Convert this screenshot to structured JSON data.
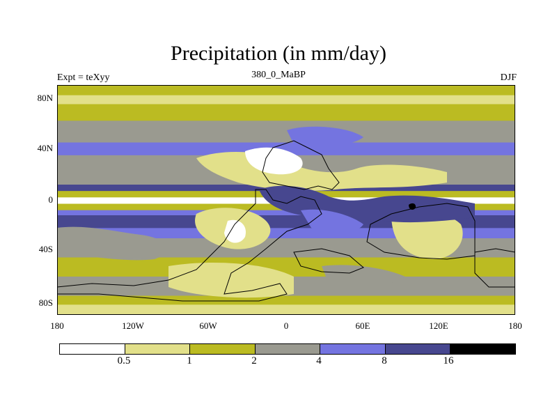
{
  "title": "Precipitation (in mm/day)",
  "left_label": "Expt = teXyy",
  "center_label": "380_0_MaBP",
  "right_label": "DJF",
  "lat_labels": [
    "80N",
    "40N",
    "0",
    "40S",
    "80S"
  ],
  "lon_labels": [
    "180",
    "120W",
    "60W",
    "0",
    "60E",
    "120E",
    "180"
  ],
  "colorbar": {
    "colors": [
      "#ffffff",
      "#e2e08a",
      "#bbbb22",
      "#9a9a90",
      "#7474e0",
      "#47478f",
      "#000000"
    ],
    "labels": [
      "0.5",
      "1",
      "2",
      "4",
      "8",
      "16"
    ]
  },
  "map_data": {
    "latitude_bands": [
      {
        "lat_from": 90,
        "lat_to": 82,
        "level": "1-2"
      },
      {
        "lat_from": 82,
        "lat_to": 75,
        "level": "0.5-1"
      },
      {
        "lat_from": 75,
        "lat_to": 62,
        "level": "1-2"
      },
      {
        "lat_from": 62,
        "lat_to": 45,
        "level": "2-4"
      },
      {
        "lat_from": 45,
        "lat_to": 35,
        "level": "4-8"
      },
      {
        "lat_from": 35,
        "lat_to": 12,
        "level": "2-4"
      },
      {
        "lat_from": 12,
        "lat_to": 7,
        "level": "8-16"
      },
      {
        "lat_from": 7,
        "lat_to": 2,
        "level": "1-2"
      },
      {
        "lat_from": 2,
        "lat_to": -3,
        "level": "0-0.5"
      },
      {
        "lat_from": -3,
        "lat_to": -8,
        "level": "1-2"
      },
      {
        "lat_from": -8,
        "lat_to": -12,
        "level": "4-8"
      },
      {
        "lat_from": -12,
        "lat_to": -22,
        "level": "8-16"
      },
      {
        "lat_from": -22,
        "lat_to": -30,
        "level": "4-8"
      },
      {
        "lat_from": -30,
        "lat_to": -45,
        "level": "2-4"
      },
      {
        "lat_from": -45,
        "lat_to": -60,
        "level": "1-2"
      },
      {
        "lat_from": -60,
        "lat_to": -75,
        "level": "2-4"
      },
      {
        "lat_from": -75,
        "lat_to": -82,
        "level": "1-2"
      },
      {
        "lat_from": -82,
        "lat_to": -90,
        "level": "0.5-1"
      }
    ]
  }
}
